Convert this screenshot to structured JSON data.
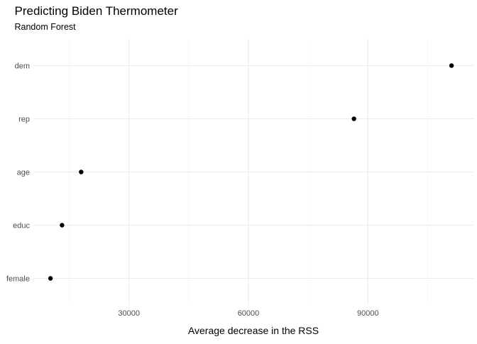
{
  "chart_data": {
    "type": "scatter",
    "title": "Predicting Biden Thermometer",
    "subtitle": "Random Forest",
    "xlabel": "Average decrease in the RSS",
    "ylabel": "",
    "categories": [
      "dem",
      "rep",
      "age",
      "educ",
      "female"
    ],
    "values": [
      111000,
      86500,
      18000,
      13200,
      10300
    ],
    "x_ticks": [
      30000,
      60000,
      90000
    ],
    "x_tick_labels": [
      "30000",
      "60000",
      "90000"
    ],
    "xlim": [
      6000,
      116500
    ],
    "grid": true,
    "point_color": "#000000"
  }
}
